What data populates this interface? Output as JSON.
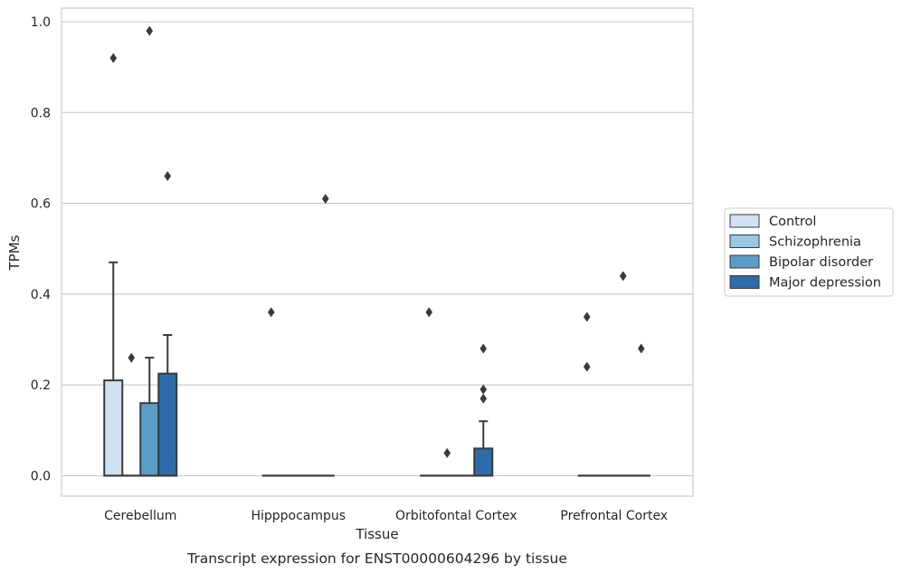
{
  "chart_data": {
    "type": "box",
    "xlabel": "Tissue",
    "ylabel": "TPMs",
    "caption": "Transcript expression for ENST00000604296 by tissue",
    "ylim": [
      -0.045,
      1.03
    ],
    "yticks": [
      "0.0",
      "0.2",
      "0.4",
      "0.6",
      "0.8",
      "1.0"
    ],
    "categories": [
      "Cerebellum",
      "Hipppocampus",
      "Orbitofontal Cortex",
      "Prefrontal Cortex"
    ],
    "grid": "horizontal",
    "legend_position": "right",
    "series": [
      {
        "name": "Control",
        "color": "#d0e1f2",
        "boxes": [
          {
            "q1": 0.0,
            "median": 0.0,
            "q3": 0.21,
            "whisker_low": 0.0,
            "whisker_high": 0.47,
            "outliers": [
              0.92
            ]
          },
          {
            "q1": 0.0,
            "median": 0.0,
            "q3": 0.0,
            "whisker_low": 0.0,
            "whisker_high": 0.0,
            "outliers": [
              0.36
            ]
          },
          {
            "q1": 0.0,
            "median": 0.0,
            "q3": 0.0,
            "whisker_low": 0.0,
            "whisker_high": 0.0,
            "outliers": [
              0.36
            ]
          },
          {
            "q1": 0.0,
            "median": 0.0,
            "q3": 0.0,
            "whisker_low": 0.0,
            "whisker_high": 0.0,
            "outliers": [
              0.35,
              0.24
            ]
          }
        ]
      },
      {
        "name": "Schizophrenia",
        "color": "#9ac8e0",
        "boxes": [
          {
            "q1": 0.0,
            "median": 0.0,
            "q3": 0.0,
            "whisker_low": 0.0,
            "whisker_high": 0.0,
            "outliers": [
              0.26
            ]
          },
          {
            "q1": 0.0,
            "median": 0.0,
            "q3": 0.0,
            "whisker_low": 0.0,
            "whisker_high": 0.0,
            "outliers": []
          },
          {
            "q1": 0.0,
            "median": 0.0,
            "q3": 0.0,
            "whisker_low": 0.0,
            "whisker_high": 0.0,
            "outliers": [
              0.05
            ]
          },
          {
            "q1": 0.0,
            "median": 0.0,
            "q3": 0.0,
            "whisker_low": 0.0,
            "whisker_high": 0.0,
            "outliers": []
          }
        ]
      },
      {
        "name": "Bipolar disorder",
        "color": "#5a9dc9",
        "boxes": [
          {
            "q1": 0.0,
            "median": 0.0,
            "q3": 0.16,
            "whisker_low": 0.0,
            "whisker_high": 0.26,
            "outliers": [
              0.98
            ]
          },
          {
            "q1": 0.0,
            "median": 0.0,
            "q3": 0.0,
            "whisker_low": 0.0,
            "whisker_high": 0.0,
            "outliers": []
          },
          {
            "q1": 0.0,
            "median": 0.0,
            "q3": 0.0,
            "whisker_low": 0.0,
            "whisker_high": 0.0,
            "outliers": []
          },
          {
            "q1": 0.0,
            "median": 0.0,
            "q3": 0.0,
            "whisker_low": 0.0,
            "whisker_high": 0.0,
            "outliers": [
              0.44
            ]
          }
        ]
      },
      {
        "name": "Major depression",
        "color": "#2d6ca8",
        "boxes": [
          {
            "q1": 0.0,
            "median": 0.0,
            "q3": 0.225,
            "whisker_low": 0.0,
            "whisker_high": 0.31,
            "outliers": [
              0.66
            ]
          },
          {
            "q1": 0.0,
            "median": 0.0,
            "q3": 0.0,
            "whisker_low": 0.0,
            "whisker_high": 0.0,
            "outliers": [
              0.61
            ]
          },
          {
            "q1": 0.0,
            "median": 0.0,
            "q3": 0.06,
            "whisker_low": 0.0,
            "whisker_high": 0.12,
            "outliers": [
              0.28,
              0.19,
              0.17
            ]
          },
          {
            "q1": 0.0,
            "median": 0.0,
            "q3": 0.0,
            "whisker_low": 0.0,
            "whisker_high": 0.0,
            "outliers": [
              0.28
            ]
          }
        ]
      }
    ]
  }
}
